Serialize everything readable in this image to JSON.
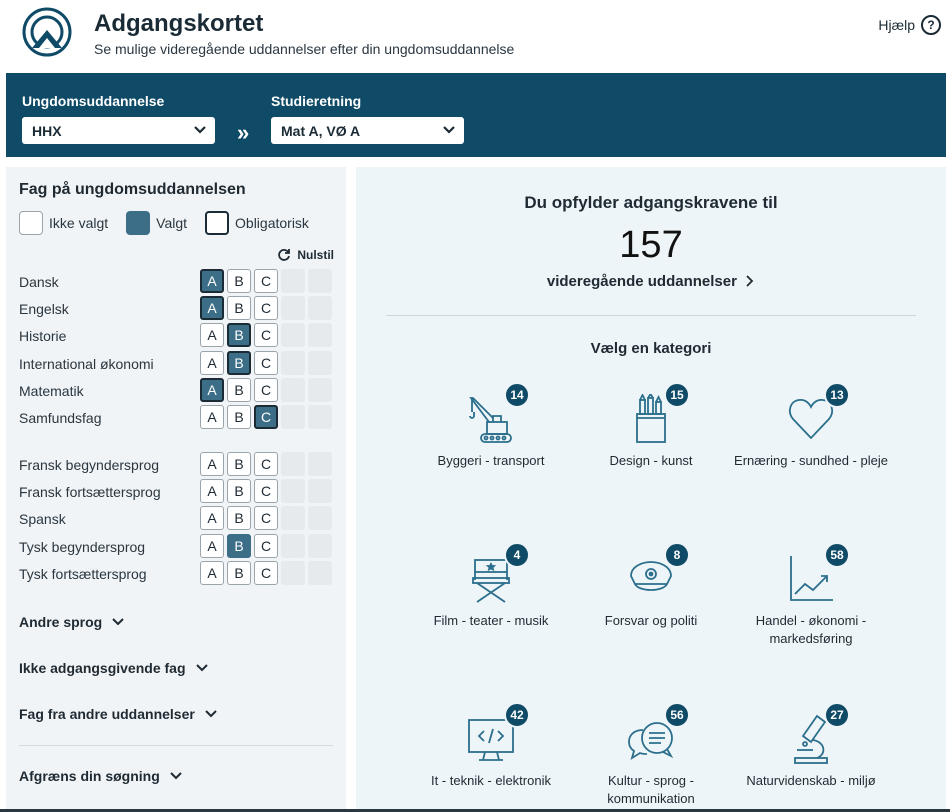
{
  "header": {
    "title": "Adgangskortet",
    "subtitle": "Se mulige videregående uddannelser efter din ungdomsuddannelse",
    "help_label": "Hjælp"
  },
  "selectors": {
    "education_label": "Ungdomsuddannelse",
    "education_value": "HHX",
    "direction_label": "Studieretning",
    "direction_value": "Mat A, VØ A"
  },
  "left": {
    "title": "Fag på ungdomsuddannelsen",
    "legend": [
      "Ikke valgt",
      "Valgt",
      "Obligatorisk"
    ],
    "reset_label": "Nulstil",
    "subjects_core": [
      {
        "name": "Dansk",
        "levels": [
          "A",
          "B",
          "C"
        ],
        "selected": "A",
        "oblig": true
      },
      {
        "name": "Engelsk",
        "levels": [
          "A",
          "B",
          "C"
        ],
        "selected": "A",
        "oblig": true
      },
      {
        "name": "Historie",
        "levels": [
          "A",
          "B",
          "C"
        ],
        "selected": "B",
        "oblig": true
      },
      {
        "name": "International økonomi",
        "levels": [
          "A",
          "B",
          "C"
        ],
        "selected": "B",
        "oblig": true
      },
      {
        "name": "Matematik",
        "levels": [
          "A",
          "B",
          "C"
        ],
        "selected": "A",
        "oblig": true
      },
      {
        "name": "Samfundsfag",
        "levels": [
          "A",
          "B",
          "C"
        ],
        "selected": "C",
        "oblig": true
      }
    ],
    "subjects_lang": [
      {
        "name": "Fransk begyndersprog",
        "levels": [
          "A",
          "B",
          "C"
        ],
        "selected": "",
        "oblig": false
      },
      {
        "name": "Fransk fortsættersprog",
        "levels": [
          "A",
          "B",
          "C"
        ],
        "selected": "",
        "oblig": false
      },
      {
        "name": "Spansk",
        "levels": [
          "A",
          "B",
          "C"
        ],
        "selected": "",
        "oblig": false
      },
      {
        "name": "Tysk begyndersprog",
        "levels": [
          "A",
          "B",
          "C"
        ],
        "selected": "B",
        "oblig": false
      },
      {
        "name": "Tysk fortsættersprog",
        "levels": [
          "A",
          "B",
          "C"
        ],
        "selected": "",
        "oblig": false
      }
    ],
    "sections": [
      "Andre sprog",
      "Ikke adgangsgivende fag",
      "Fag fra andre uddannelser",
      "Afgræns din søgning"
    ]
  },
  "right": {
    "req_title": "Du opfylder adgangskravene til",
    "req_count": "157",
    "req_link": "videregående uddannelser",
    "category_title": "Vælg en kategori",
    "categories": [
      {
        "label": "Byggeri - transport",
        "count": "14",
        "icon": "crane-icon"
      },
      {
        "label": "Design - kunst",
        "count": "15",
        "icon": "pencil-cup-icon"
      },
      {
        "label": "Ernæring - sundhed - pleje",
        "count": "13",
        "icon": "heart-icon"
      },
      {
        "label": "Film - teater - musik",
        "count": "4",
        "icon": "director-chair-icon"
      },
      {
        "label": "Forsvar og politi",
        "count": "8",
        "icon": "police-cap-icon"
      },
      {
        "label": "Handel - økonomi - markedsføring",
        "count": "58",
        "icon": "trend-chart-icon"
      },
      {
        "label": "It - teknik - elektronik",
        "count": "42",
        "icon": "monitor-code-icon"
      },
      {
        "label": "Kultur - sprog - kommunikation",
        "count": "56",
        "icon": "speech-bubbles-icon"
      },
      {
        "label": "Naturvidenskab - miljø",
        "count": "27",
        "icon": "microscope-icon"
      }
    ]
  }
}
